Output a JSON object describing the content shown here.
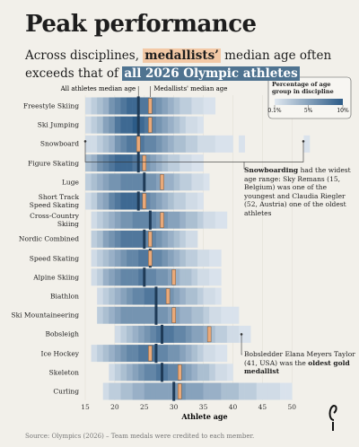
{
  "chart_data": {
    "type": "heatmap",
    "title": "Peak performance",
    "subtitle": {
      "pre": "Across disciplines, ",
      "medallists": "medallists’",
      "mid": " median age often exceeds that of ",
      "athletes": "all 2026 Olympic athletes"
    },
    "athlete_median_label": "All athletes median age",
    "medallist_median_label": "Medallists' median age",
    "legend_title": "Percentage of age group in discipline",
    "legend_ticks": [
      {
        "value": 0.1,
        "label": "0.1%"
      },
      {
        "value": 5,
        "label": "5%"
      },
      {
        "value": 10,
        "label": "10%"
      }
    ],
    "colormap": [
      "#e0e8f0",
      "#2c5b87"
    ],
    "x_label": "Athlete age",
    "xlim": [
      15,
      53
    ],
    "xticks": [
      15,
      20,
      25,
      30,
      35,
      40,
      45,
      50
    ],
    "x": [
      15,
      16,
      17,
      18,
      19,
      20,
      21,
      22,
      23,
      24,
      25,
      26,
      27,
      28,
      29,
      30,
      31,
      32,
      33,
      34,
      35,
      36,
      37,
      38,
      39,
      40,
      41,
      42,
      43,
      44,
      45,
      46,
      47,
      48,
      49,
      50,
      51,
      52
    ],
    "categories": [
      "Freestyle Skiing",
      "Ski Jumping",
      "Snowboard",
      "Figure Skating",
      "Luge",
      "Short Track\nSpeed Skating",
      "Cross-Country\nSkiing",
      "Nordic Combined",
      "Speed Skating",
      "Alpine Skiing",
      "Biathlon",
      "Ski Mountaineering",
      "Bobsleigh",
      "Ice Hockey",
      "Skeleton",
      "Curling"
    ],
    "athlete_median": [
      24,
      24,
      24,
      24,
      25,
      24,
      26,
      25,
      26,
      25,
      27,
      27,
      28,
      27,
      28,
      30
    ],
    "medallist_median": [
      26,
      26,
      24,
      25,
      28,
      25,
      28,
      26,
      26,
      30,
      29,
      30,
      36,
      26,
      31,
      31
    ],
    "series": [
      {
        "values": [
          1,
          2,
          3,
          4,
          6,
          7,
          8,
          9,
          9,
          8,
          8,
          7,
          6,
          5,
          4,
          3,
          2,
          2,
          1,
          1,
          0.5,
          0.5,
          null,
          null,
          null,
          null,
          null,
          null,
          null,
          null,
          null,
          null,
          null,
          null,
          null,
          null,
          null,
          null
        ]
      },
      {
        "values": [
          1,
          2,
          3,
          5,
          6,
          8,
          9,
          9,
          10,
          9,
          8,
          7,
          6,
          5,
          4,
          3,
          2,
          1,
          1,
          0.5,
          null,
          null,
          null,
          null,
          null,
          null,
          null,
          null,
          null,
          null,
          null,
          null,
          null,
          null,
          null,
          null,
          null,
          null
        ]
      },
      {
        "values": [
          1,
          1,
          2,
          3,
          4,
          6,
          7,
          8,
          8,
          8,
          7,
          7,
          6,
          5,
          4,
          3,
          3,
          2,
          2,
          1,
          1,
          1,
          0.5,
          0.5,
          0.5,
          null,
          0.5,
          null,
          null,
          null,
          null,
          null,
          null,
          null,
          null,
          null,
          null,
          0.5
        ]
      },
      {
        "values": [
          3,
          4,
          6,
          7,
          8,
          9,
          9,
          9,
          8,
          7,
          6,
          5,
          4,
          3,
          2,
          2,
          1,
          1,
          0.5,
          0.5,
          null,
          null,
          null,
          null,
          null,
          null,
          null,
          null,
          null,
          null,
          null,
          null,
          null,
          null,
          null,
          null,
          null,
          null
        ]
      },
      {
        "values": [
          2,
          3,
          4,
          5,
          6,
          6,
          7,
          7,
          7,
          7,
          6,
          6,
          5,
          4,
          4,
          3,
          2,
          2,
          1,
          1,
          0.5,
          null,
          null,
          null,
          null,
          null,
          null,
          null,
          null,
          null,
          null,
          null,
          null,
          null,
          null,
          null,
          null,
          null
        ]
      },
      {
        "values": [
          1,
          2,
          4,
          5,
          7,
          8,
          9,
          9,
          9,
          8,
          7,
          6,
          5,
          4,
          3,
          2,
          2,
          1,
          1,
          0.5,
          null,
          null,
          null,
          null,
          null,
          null,
          null,
          null,
          null,
          null,
          null,
          null,
          null,
          null,
          null,
          null,
          null,
          null
        ]
      },
      {
        "values": [
          null,
          1,
          2,
          3,
          4,
          5,
          6,
          6,
          7,
          7,
          7,
          7,
          6,
          6,
          5,
          5,
          4,
          3,
          3,
          2,
          1,
          1,
          0.5,
          0.5,
          null,
          null,
          null,
          null,
          null,
          null,
          null,
          null,
          null,
          null,
          null,
          null,
          null,
          null
        ]
      },
      {
        "values": [
          null,
          2,
          3,
          5,
          6,
          7,
          8,
          8,
          8,
          8,
          7,
          7,
          6,
          5,
          4,
          3,
          2,
          1,
          1,
          null,
          null,
          null,
          null,
          null,
          null,
          null,
          null,
          null,
          null,
          null,
          null,
          null,
          null,
          null,
          null,
          null,
          null,
          null
        ]
      },
      {
        "values": [
          null,
          1,
          2,
          3,
          4,
          5,
          6,
          7,
          7,
          8,
          8,
          7,
          7,
          6,
          5,
          4,
          3,
          2,
          2,
          1,
          1,
          0.5,
          0.5,
          null,
          null,
          null,
          null,
          null,
          null,
          null,
          null,
          null,
          null,
          null,
          null,
          null,
          null,
          null
        ]
      },
      {
        "values": [
          null,
          1,
          2,
          4,
          5,
          6,
          7,
          7,
          7,
          8,
          7,
          7,
          6,
          6,
          5,
          4,
          3,
          3,
          2,
          1,
          1,
          0.5,
          0.5,
          null,
          null,
          null,
          null,
          null,
          null,
          null,
          null,
          null,
          null,
          null,
          null,
          null,
          null,
          null
        ]
      },
      {
        "values": [
          null,
          null,
          1,
          2,
          3,
          4,
          5,
          6,
          7,
          7,
          8,
          8,
          7,
          7,
          6,
          5,
          4,
          3,
          3,
          2,
          1,
          1,
          0.5,
          null,
          null,
          null,
          null,
          null,
          null,
          null,
          null,
          null,
          null,
          null,
          null,
          null,
          null,
          null
        ]
      },
      {
        "values": [
          null,
          null,
          2,
          3,
          4,
          5,
          6,
          6,
          6,
          6,
          6,
          6,
          6,
          6,
          5,
          5,
          4,
          4,
          3,
          3,
          2,
          1,
          1,
          0.5,
          0.5,
          0.5,
          null,
          null,
          null,
          null,
          null,
          null,
          null,
          null,
          null,
          null,
          null,
          null
        ]
      },
      {
        "values": [
          null,
          null,
          null,
          null,
          null,
          1,
          2,
          3,
          4,
          5,
          6,
          7,
          8,
          8,
          8,
          7,
          7,
          6,
          5,
          5,
          4,
          3,
          2,
          2,
          1,
          1,
          0.5,
          0.5,
          null,
          null,
          null,
          null,
          null,
          null,
          null,
          null,
          null,
          null
        ]
      },
      {
        "values": [
          null,
          1,
          2,
          3,
          4,
          5,
          6,
          7,
          7,
          8,
          8,
          8,
          7,
          7,
          6,
          6,
          5,
          4,
          3,
          2,
          1,
          1,
          0.5,
          0.5,
          null,
          null,
          null,
          null,
          null,
          null,
          null,
          null,
          null,
          null,
          null,
          null,
          null,
          null
        ]
      },
      {
        "values": [
          null,
          null,
          null,
          null,
          1,
          2,
          3,
          4,
          5,
          6,
          7,
          7,
          8,
          8,
          7,
          7,
          6,
          5,
          4,
          3,
          3,
          2,
          1,
          1,
          0.5,
          null,
          null,
          null,
          null,
          null,
          null,
          null,
          null,
          null,
          null,
          null,
          null,
          null
        ]
      },
      {
        "values": [
          null,
          null,
          null,
          1,
          2,
          2,
          3,
          3,
          4,
          4,
          5,
          5,
          5,
          5,
          5,
          6,
          6,
          5,
          5,
          5,
          4,
          4,
          4,
          3,
          3,
          3,
          2,
          2,
          2,
          1,
          1,
          1,
          1,
          0.5,
          0.5,
          null,
          null,
          null
        ]
      }
    ],
    "annotations": [
      {
        "bold": "Snowboarding",
        "text": " had the widest age range: Sky Remans (15, Belgium) was one of the youngest and Claudia Riegler (52, Austria) one of the oldest athletes"
      },
      {
        "text": "Bobsledder Elana Meyers Taylor (41, USA) was the ",
        "bold": "oldest gold medallist"
      }
    ],
    "source": "Source: Olympics (2026) – Team medals were credited to each member."
  }
}
